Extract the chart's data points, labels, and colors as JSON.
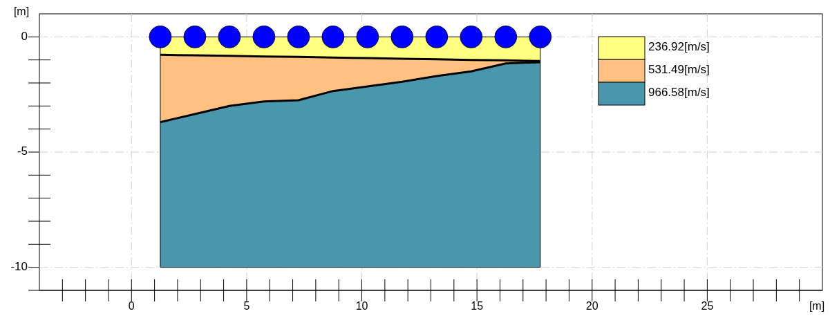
{
  "chart_data": {
    "type": "area",
    "stacked": true,
    "xlabel": "[m]",
    "ylabel": "[m]",
    "xlim": [
      -4,
      30
    ],
    "ylim": [
      -11,
      1
    ],
    "xticks": [
      {
        "value": -3,
        "label": null
      },
      {
        "value": -2,
        "label": null
      },
      {
        "value": -1,
        "label": null
      },
      0,
      {
        "value": 1,
        "label": null
      },
      {
        "value": 2,
        "label": null
      },
      {
        "value": 3,
        "label": null
      },
      {
        "value": 4,
        "label": null
      },
      5,
      {
        "value": 6,
        "label": null
      },
      {
        "value": 7,
        "label": null
      },
      {
        "value": 8,
        "label": null
      },
      {
        "value": 9,
        "label": null
      },
      10,
      {
        "value": 11,
        "label": null
      },
      {
        "value": 12,
        "label": null
      },
      {
        "value": 13,
        "label": null
      },
      {
        "value": 14,
        "label": null
      },
      15,
      {
        "value": 16,
        "label": null
      },
      {
        "value": 17,
        "label": null
      },
      {
        "value": 18,
        "label": null
      },
      {
        "value": 19,
        "label": null
      },
      20,
      {
        "value": 21,
        "label": null
      },
      {
        "value": 22,
        "label": null
      },
      {
        "value": 23,
        "label": null
      },
      {
        "value": 24,
        "label": null
      },
      25,
      {
        "value": 26,
        "label": null
      },
      {
        "value": 27,
        "label": null
      },
      {
        "value": 28,
        "label": null
      },
      {
        "value": 29,
        "label": null
      }
    ],
    "yticks": [
      -10,
      {
        "value": -9,
        "label": null
      },
      {
        "value": -8,
        "label": null
      },
      {
        "value": -7,
        "label": null
      },
      {
        "value": -6,
        "label": null
      },
      -5,
      {
        "value": -4,
        "label": null
      },
      {
        "value": -3,
        "label": null
      },
      {
        "value": -2,
        "label": null
      },
      {
        "value": -1,
        "label": null
      },
      0
    ],
    "grid": true,
    "legend": "top right",
    "x": [
      1.25,
      2.75,
      4.25,
      5.75,
      7.25,
      8.75,
      10.25,
      11.75,
      13.25,
      14.75,
      16.25,
      17.75
    ],
    "series": [
      {
        "name": "236.92[m/s]",
        "color": "#ffff80",
        "values": [
          -0.78,
          -0.8,
          -0.82,
          -0.85,
          -0.87,
          -0.9,
          -0.92,
          -0.95,
          -0.97,
          -1.0,
          -1.02,
          -1.05
        ]
      },
      {
        "name": "531.49[m/s]",
        "color": "#ffc080",
        "values": [
          -2.92,
          -2.55,
          -2.18,
          -1.95,
          -1.88,
          -1.45,
          -1.23,
          -1.0,
          -0.73,
          -0.5,
          -0.13,
          -0.05
        ]
      },
      {
        "name": "966.58[m/s]",
        "color": "#4897ac",
        "values": [
          -6.3,
          -6.65,
          -7.0,
          -7.2,
          -7.25,
          -7.65,
          -7.85,
          -8.05,
          -8.3,
          -8.5,
          -8.85,
          -8.9
        ]
      },
      {
        "type": "scatter",
        "color": "#0000ff",
        "marker": "circle",
        "values": [
          0,
          0,
          0,
          0,
          0,
          0,
          0,
          0,
          0,
          0,
          0,
          0
        ]
      }
    ]
  }
}
